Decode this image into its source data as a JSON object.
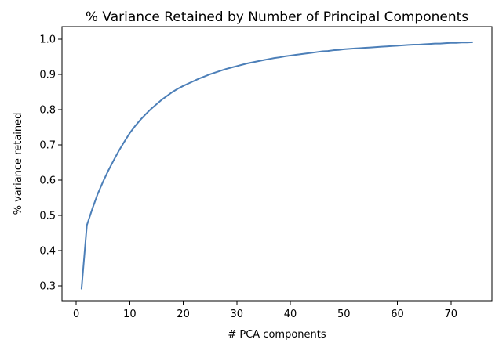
{
  "chart_data": {
    "type": "line",
    "title": "% Variance Retained by Number of Principal Components",
    "xlabel": "# PCA components",
    "ylabel": "% variance retained",
    "xlim": [
      -2.65,
      77.65
    ],
    "ylim": [
      0.258,
      1.035
    ],
    "xticks": [
      0,
      10,
      20,
      30,
      40,
      50,
      60,
      70
    ],
    "yticks": [
      0.3,
      0.4,
      0.5,
      0.6,
      0.7,
      0.8,
      0.9,
      1.0
    ],
    "xtick_labels": [
      "0",
      "10",
      "20",
      "30",
      "40",
      "50",
      "60",
      "70"
    ],
    "ytick_labels": [
      "0.3",
      "0.4",
      "0.5",
      "0.6",
      "0.7",
      "0.8",
      "0.9",
      "1.0"
    ],
    "grid": false,
    "series": [
      {
        "color": "#4c7fb8",
        "x": [
          1,
          2,
          3,
          4,
          5,
          6,
          7,
          8,
          9,
          10,
          11,
          12,
          13,
          14,
          15,
          16,
          17,
          18,
          19,
          20,
          21,
          22,
          23,
          24,
          25,
          26,
          27,
          28,
          29,
          30,
          31,
          32,
          33,
          34,
          35,
          36,
          37,
          38,
          39,
          40,
          41,
          42,
          43,
          44,
          45,
          46,
          47,
          48,
          49,
          50,
          51,
          52,
          53,
          54,
          55,
          56,
          57,
          58,
          59,
          60,
          61,
          62,
          63,
          64,
          65,
          66,
          67,
          68,
          69,
          70,
          71,
          72,
          73,
          74
        ],
        "y": [
          0.292,
          0.472,
          0.518,
          0.56,
          0.595,
          0.627,
          0.656,
          0.684,
          0.709,
          0.733,
          0.753,
          0.771,
          0.787,
          0.802,
          0.815,
          0.828,
          0.839,
          0.85,
          0.859,
          0.867,
          0.874,
          0.881,
          0.888,
          0.894,
          0.9,
          0.905,
          0.91,
          0.915,
          0.919,
          0.923,
          0.927,
          0.931,
          0.934,
          0.937,
          0.94,
          0.943,
          0.946,
          0.948,
          0.951,
          0.953,
          0.955,
          0.957,
          0.959,
          0.961,
          0.963,
          0.965,
          0.966,
          0.968,
          0.969,
          0.971,
          0.972,
          0.973,
          0.974,
          0.975,
          0.976,
          0.977,
          0.978,
          0.979,
          0.98,
          0.981,
          0.982,
          0.983,
          0.984,
          0.984,
          0.985,
          0.986,
          0.987,
          0.987,
          0.988,
          0.989,
          0.989,
          0.99,
          0.99,
          0.991
        ]
      }
    ]
  }
}
